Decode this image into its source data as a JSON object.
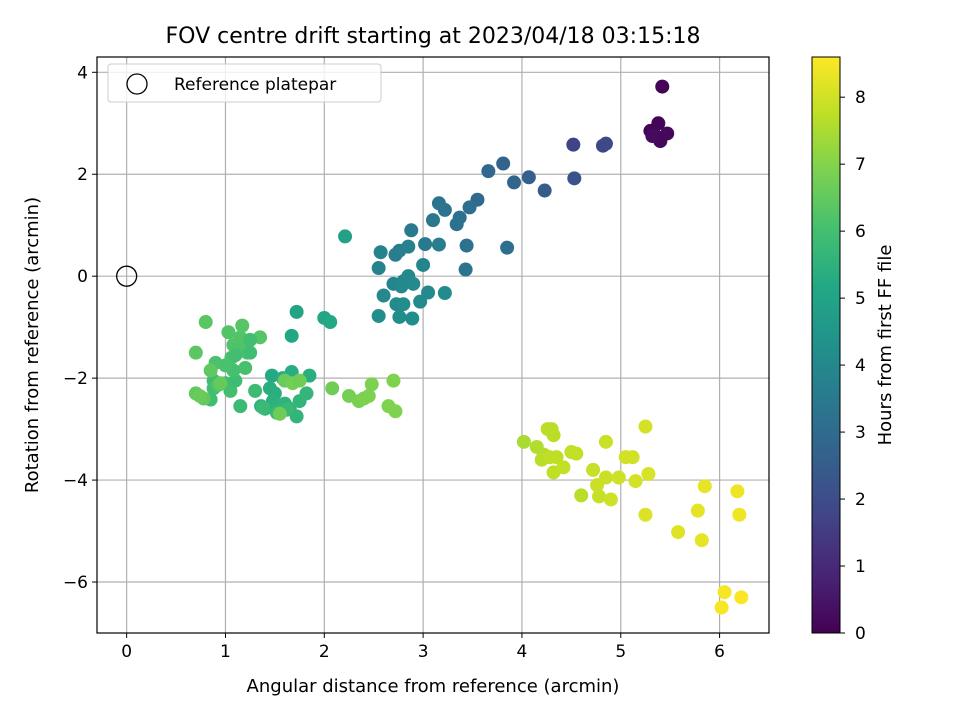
{
  "chart_data": {
    "type": "scatter",
    "title": "FOV centre drift starting at 2023/04/18 03:15:18",
    "xlabel": "Angular distance from reference (arcmin)",
    "ylabel": "Rotation from reference (arcmin)",
    "xlim": [
      -0.3,
      6.5
    ],
    "ylim": [
      -7.0,
      4.3
    ],
    "xticks": [
      0,
      1,
      2,
      3,
      4,
      5,
      6
    ],
    "yticks": [
      -6,
      -4,
      -2,
      0,
      2,
      4
    ],
    "grid": true,
    "legend": {
      "placement": "top-left",
      "entries": [
        "Reference platepar"
      ]
    },
    "reference_point": {
      "name": "Reference platepar",
      "x": 0,
      "y": 0
    },
    "colorbar": {
      "label": "Hours from first FF file",
      "colormap": "viridis",
      "range": [
        0,
        8.6
      ],
      "ticks": [
        0,
        1,
        2,
        3,
        4,
        5,
        6,
        7,
        8
      ]
    },
    "series": [
      {
        "points": [
          [
            5.42,
            3.72,
            0.05
          ],
          [
            5.38,
            3.0,
            0.1
          ],
          [
            5.3,
            2.85,
            0.1
          ],
          [
            5.34,
            2.78,
            0.15
          ],
          [
            5.47,
            2.8,
            0.2
          ],
          [
            5.4,
            2.65,
            0.2
          ],
          [
            5.32,
            2.75,
            0.25
          ],
          [
            4.52,
            2.58,
            1.7
          ],
          [
            4.82,
            2.56,
            1.8
          ],
          [
            4.85,
            2.6,
            1.9
          ],
          [
            4.53,
            1.92,
            2.2
          ],
          [
            4.23,
            1.68,
            2.5
          ],
          [
            4.07,
            1.94,
            2.6
          ],
          [
            3.81,
            2.21,
            2.7
          ],
          [
            3.92,
            1.84,
            2.8
          ],
          [
            3.66,
            2.06,
            2.9
          ],
          [
            3.55,
            1.5,
            3.0
          ],
          [
            3.47,
            1.35,
            3.1
          ],
          [
            3.37,
            1.15,
            3.2
          ],
          [
            3.34,
            1.02,
            3.25
          ],
          [
            3.16,
            1.43,
            3.3
          ],
          [
            3.22,
            1.3,
            3.3
          ],
          [
            3.1,
            1.1,
            3.4
          ],
          [
            2.88,
            0.9,
            3.5
          ],
          [
            3.02,
            0.63,
            3.5
          ],
          [
            2.72,
            0.42,
            3.6
          ],
          [
            2.76,
            0.5,
            3.6
          ],
          [
            2.85,
            0.58,
            3.7
          ],
          [
            3.16,
            0.62,
            3.6
          ],
          [
            3.44,
            0.6,
            3.2
          ],
          [
            3.85,
            0.56,
            3.1
          ],
          [
            3.43,
            0.13,
            3.3
          ],
          [
            2.57,
            0.47,
            3.8
          ],
          [
            2.55,
            0.16,
            3.8
          ],
          [
            3.0,
            0.22,
            3.9
          ],
          [
            2.7,
            -0.15,
            3.9
          ],
          [
            2.8,
            -0.1,
            3.95
          ],
          [
            2.85,
            0.0,
            4.0
          ],
          [
            2.78,
            -0.2,
            4.0
          ],
          [
            2.6,
            -0.38,
            4.0
          ],
          [
            2.9,
            -0.15,
            4.05
          ],
          [
            3.05,
            -0.32,
            4.05
          ],
          [
            3.22,
            -0.33,
            4.1
          ],
          [
            2.97,
            -0.5,
            4.1
          ],
          [
            2.73,
            -0.55,
            4.1
          ],
          [
            2.8,
            -0.55,
            4.15
          ],
          [
            2.55,
            -0.78,
            4.2
          ],
          [
            2.76,
            -0.8,
            4.2
          ],
          [
            2.89,
            -0.83,
            4.2
          ],
          [
            2.21,
            0.78,
            4.9
          ],
          [
            1.72,
            -0.7,
            5.0
          ],
          [
            1.67,
            -1.17,
            5.1
          ],
          [
            2.0,
            -0.82,
            5.1
          ],
          [
            2.06,
            -0.9,
            5.15
          ],
          [
            1.47,
            -1.95,
            5.2
          ],
          [
            1.58,
            -2.0,
            5.3
          ],
          [
            1.67,
            -1.88,
            5.3
          ],
          [
            1.85,
            -1.95,
            5.35
          ],
          [
            1.45,
            -2.2,
            5.4
          ],
          [
            1.5,
            -2.3,
            5.4
          ],
          [
            1.48,
            -2.45,
            5.45
          ],
          [
            1.36,
            -2.55,
            5.5
          ],
          [
            1.4,
            -2.6,
            5.5
          ],
          [
            1.6,
            -2.5,
            5.55
          ],
          [
            1.75,
            -2.45,
            5.6
          ],
          [
            1.72,
            -2.75,
            5.6
          ],
          [
            1.65,
            -2.6,
            5.6
          ],
          [
            1.82,
            -2.3,
            5.65
          ],
          [
            1.55,
            -2.65,
            5.7
          ],
          [
            1.52,
            -2.68,
            5.75
          ],
          [
            1.62,
            -2.62,
            5.75
          ],
          [
            1.38,
            -2.58,
            5.8
          ],
          [
            1.15,
            -2.55,
            5.8
          ],
          [
            1.3,
            -2.25,
            5.85
          ],
          [
            1.1,
            -2.05,
            5.9
          ],
          [
            1.0,
            -2.1,
            5.9
          ],
          [
            0.88,
            -2.05,
            5.95
          ],
          [
            0.85,
            -2.42,
            5.95
          ],
          [
            0.88,
            -2.2,
            6.0
          ],
          [
            1.05,
            -2.25,
            6.0
          ],
          [
            1.08,
            -1.85,
            6.05
          ],
          [
            1.2,
            -1.8,
            6.05
          ],
          [
            1.0,
            -1.75,
            6.1
          ],
          [
            0.9,
            -1.7,
            6.1
          ],
          [
            1.06,
            -1.6,
            6.1
          ],
          [
            1.15,
            -1.45,
            6.15
          ],
          [
            1.22,
            -1.5,
            6.15
          ],
          [
            1.08,
            -1.35,
            6.2
          ],
          [
            1.2,
            -1.3,
            6.2
          ],
          [
            1.15,
            -1.2,
            6.25
          ],
          [
            1.03,
            -1.1,
            6.25
          ],
          [
            1.35,
            -1.2,
            6.3
          ],
          [
            1.17,
            -0.97,
            6.3
          ],
          [
            0.8,
            -0.9,
            6.35
          ],
          [
            0.7,
            -1.5,
            6.4
          ],
          [
            0.93,
            -2.13,
            6.3
          ],
          [
            0.85,
            -1.85,
            6.45
          ],
          [
            0.7,
            -2.3,
            6.5
          ],
          [
            0.78,
            -2.4,
            6.5
          ],
          [
            0.95,
            -2.1,
            6.55
          ],
          [
            0.74,
            -2.35,
            6.6
          ],
          [
            1.25,
            -1.25,
            6.0
          ],
          [
            1.1,
            -1.55,
            6.0
          ],
          [
            1.25,
            -1.5,
            5.95
          ],
          [
            1.6,
            -2.05,
            6.6
          ],
          [
            1.55,
            -2.7,
            6.7
          ],
          [
            1.68,
            -2.1,
            6.75
          ],
          [
            1.75,
            -2.05,
            6.7
          ],
          [
            2.08,
            -2.2,
            6.7
          ],
          [
            2.25,
            -2.35,
            6.8
          ],
          [
            2.35,
            -2.45,
            6.85
          ],
          [
            2.4,
            -2.4,
            6.9
          ],
          [
            2.45,
            -2.35,
            6.9
          ],
          [
            2.48,
            -2.12,
            6.9
          ],
          [
            2.65,
            -2.55,
            6.95
          ],
          [
            2.72,
            -2.65,
            6.95
          ],
          [
            2.7,
            -2.05,
            6.95
          ],
          [
            4.02,
            -3.25,
            7.5
          ],
          [
            4.15,
            -3.35,
            7.6
          ],
          [
            4.22,
            -3.5,
            7.6
          ],
          [
            4.26,
            -3.0,
            7.7
          ],
          [
            4.3,
            -3.0,
            7.7
          ],
          [
            4.32,
            -3.12,
            7.7
          ],
          [
            4.2,
            -3.6,
            7.7
          ],
          [
            4.28,
            -3.55,
            7.75
          ],
          [
            4.35,
            -3.55,
            7.75
          ],
          [
            4.32,
            -3.85,
            7.75
          ],
          [
            4.42,
            -3.75,
            7.8
          ],
          [
            4.5,
            -3.45,
            7.8
          ],
          [
            4.55,
            -3.48,
            7.8
          ],
          [
            4.6,
            -4.3,
            7.7
          ],
          [
            4.72,
            -3.8,
            7.85
          ],
          [
            4.78,
            -4.32,
            7.85
          ],
          [
            4.76,
            -4.1,
            7.9
          ],
          [
            4.85,
            -3.95,
            7.9
          ],
          [
            4.85,
            -3.25,
            7.9
          ],
          [
            4.9,
            -4.38,
            7.95
          ],
          [
            4.98,
            -3.95,
            7.95
          ],
          [
            5.05,
            -3.55,
            8.0
          ],
          [
            5.12,
            -3.55,
            8.0
          ],
          [
            5.15,
            -4.02,
            8.05
          ],
          [
            5.25,
            -2.95,
            8.05
          ],
          [
            5.28,
            -3.88,
            8.1
          ],
          [
            5.25,
            -4.68,
            8.15
          ],
          [
            5.58,
            -5.02,
            8.2
          ],
          [
            5.78,
            -4.6,
            8.25
          ],
          [
            5.82,
            -5.18,
            8.3
          ],
          [
            5.85,
            -4.12,
            8.3
          ],
          [
            6.18,
            -4.22,
            8.4
          ],
          [
            6.2,
            -4.68,
            8.4
          ],
          [
            6.02,
            -6.5,
            8.5
          ],
          [
            6.05,
            -6.2,
            8.5
          ],
          [
            6.22,
            -6.3,
            8.55
          ]
        ]
      }
    ]
  }
}
